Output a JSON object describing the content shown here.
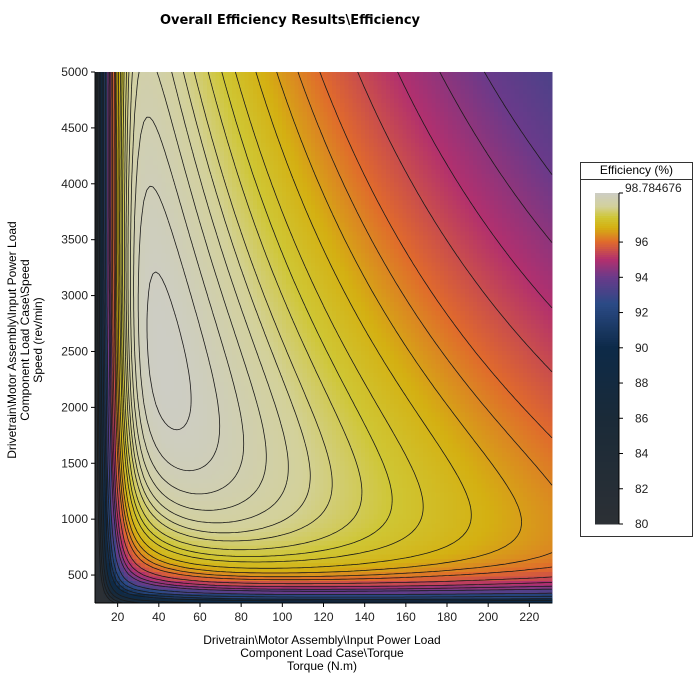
{
  "chart_data": {
    "type": "heatmap",
    "title": "Overall Efficiency Results\\Efficiency",
    "xlabel_lines": [
      "Drivetrain\\Motor Assembly\\Input Power Load",
      "Component Load Case\\Torque",
      "Torque (N.m)"
    ],
    "ylabel_lines": [
      "Drivetrain\\Motor Assembly\\Input Power Load",
      "Component Load Case\\Speed",
      "Speed (rev/min)"
    ],
    "xlim": [
      9,
      231
    ],
    "ylim": [
      250,
      5000
    ],
    "x_ticks": [
      20,
      40,
      60,
      80,
      100,
      120,
      140,
      160,
      180,
      200,
      220
    ],
    "y_ticks": [
      500,
      1000,
      1500,
      2000,
      2500,
      3000,
      3500,
      4000,
      4500,
      5000
    ],
    "colorbar": {
      "title": "Efficiency (%)",
      "min": 80,
      "max": 98.784676,
      "max_label": "98.784676",
      "ticks": [
        80,
        82,
        84,
        86,
        88,
        90,
        92,
        94,
        96
      ],
      "stops": [
        {
          "value": 80,
          "color": "#2c3035"
        },
        {
          "value": 86,
          "color": "#1a2a38"
        },
        {
          "value": 90,
          "color": "#0d2a48"
        },
        {
          "value": 92.5,
          "color": "#2b4a86"
        },
        {
          "value": 94,
          "color": "#6a3a8a"
        },
        {
          "value": 95,
          "color": "#b2306e"
        },
        {
          "value": 96,
          "color": "#e06a2c"
        },
        {
          "value": 96.8,
          "color": "#d4b012"
        },
        {
          "value": 97.4,
          "color": "#cfc634"
        },
        {
          "value": 98,
          "color": "#d3d19a"
        },
        {
          "value": 98.784676,
          "color": "#cdcdc5"
        }
      ]
    },
    "contour_levels": [
      82,
      84,
      86,
      88,
      90,
      91,
      92,
      93,
      94,
      94.5,
      95,
      95.5,
      96,
      96.3,
      96.6,
      96.9,
      97.2,
      97.4,
      97.6,
      97.8,
      97.95,
      98.1,
      98.25,
      98.4,
      98.55,
      98.7
    ],
    "model": {
      "description": "efficiency field across torque and speed",
      "peak_efficiency": 98.784676
    }
  }
}
